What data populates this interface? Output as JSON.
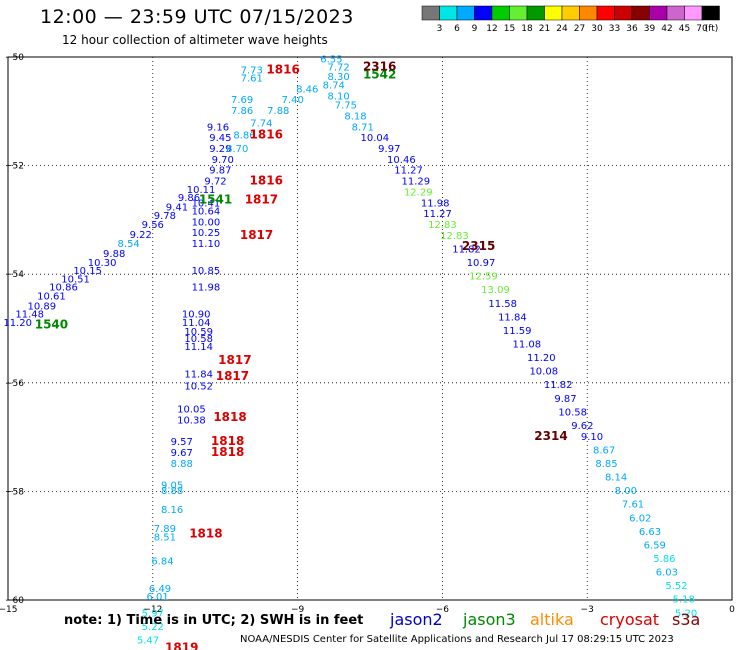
{
  "header": {
    "title": "12:00 — 23:59 UTC 07/15/2023",
    "subtitle": "12 hour collection of altimeter wave heights"
  },
  "footer": {
    "note": "note:  1) Time is in UTC;  2) SWH is in feet",
    "satellites": [
      "jason2",
      "jason3",
      "altika",
      "cryosat",
      "s3a"
    ],
    "credit": "NOAA/NESDIS Center for Satellite Applications and Research     Jul 17 08:29:15 UTC 2023"
  },
  "colorbar": {
    "labels": [
      "3",
      "6",
      "9",
      "12",
      "15",
      "18",
      "21",
      "24",
      "27",
      "30",
      "33",
      "36",
      "39",
      "42",
      "45",
      "70",
      "(ft)"
    ],
    "colors": [
      "#777777",
      "#00e5e5",
      "#00aaff",
      "#0000ff",
      "#00cc00",
      "#66ee33",
      "#009900",
      "#ffff00",
      "#ffcc00",
      "#ff8800",
      "#ff0000",
      "#cc0000",
      "#880000",
      "#aa00aa",
      "#cc66cc",
      "#ff99ff",
      "#000000"
    ]
  },
  "chart_data": {
    "type": "scatter",
    "xlim": [
      -15,
      0
    ],
    "ylim": [
      -60,
      -50
    ],
    "xticks": [
      -15,
      -12,
      -9,
      -6,
      -3,
      0
    ],
    "yticks": [
      -50,
      -52,
      -54,
      -56,
      -58,
      -60
    ],
    "xtick_labels": [
      "−15",
      "−12",
      "−9",
      "−6",
      "−3",
      "0"
    ],
    "ytick_labels": [
      "−50",
      "−52",
      "−54",
      "−56",
      "−58",
      "−60"
    ],
    "grid": true,
    "points": [
      {
        "x": -14.8,
        "y": -54.95,
        "v": "11.20",
        "c": "#0000ff"
      },
      {
        "x": -14.55,
        "y": -54.8,
        "v": "11.48",
        "c": "#0000ff"
      },
      {
        "x": -14.3,
        "y": -54.65,
        "v": "10.89",
        "c": "#0000ff"
      },
      {
        "x": -14.1,
        "y": -54.47,
        "v": "10.61",
        "c": "#0000ff"
      },
      {
        "x": -13.85,
        "y": -54.3,
        "v": "10.86",
        "c": "#0000ff"
      },
      {
        "x": -13.6,
        "y": -54.15,
        "v": "10.51",
        "c": "#0000ff"
      },
      {
        "x": -13.35,
        "y": -54.0,
        "v": "10.15",
        "c": "#0000ff"
      },
      {
        "x": -13.05,
        "y": -53.85,
        "v": "10.30",
        "c": "#0000ff"
      },
      {
        "x": -12.8,
        "y": -53.68,
        "v": "9.88",
        "c": "#0000ff"
      },
      {
        "x": -12.5,
        "y": -53.5,
        "v": "8.54",
        "c": "#00aaff"
      },
      {
        "x": -12.25,
        "y": -53.33,
        "v": "9.22",
        "c": "#0000ff"
      },
      {
        "x": -12.0,
        "y": -53.15,
        "v": "9.56",
        "c": "#0000ff"
      },
      {
        "x": -11.75,
        "y": -52.98,
        "v": "9.78",
        "c": "#0000ff"
      },
      {
        "x": -11.5,
        "y": -52.83,
        "v": "9.41",
        "c": "#0000ff"
      },
      {
        "x": -11.25,
        "y": -52.65,
        "v": "9.86",
        "c": "#0000ff"
      },
      {
        "x": -11.0,
        "y": -52.5,
        "v": "10.11",
        "c": "#0000ff"
      },
      {
        "x": -10.7,
        "y": -52.35,
        "v": "9.72",
        "c": "#0000ff"
      },
      {
        "x": -10.6,
        "y": -52.15,
        "v": "9.87",
        "c": "#0000ff"
      },
      {
        "x": -10.55,
        "y": -51.95,
        "v": "9.70",
        "c": "#0000ff"
      },
      {
        "x": -10.6,
        "y": -51.75,
        "v": "9.29",
        "c": "#0000ff"
      },
      {
        "x": -10.6,
        "y": -51.55,
        "v": "9.45",
        "c": "#0000ff"
      },
      {
        "x": -10.65,
        "y": -51.35,
        "v": "9.16",
        "c": "#0000ff"
      },
      {
        "x": -10.25,
        "y": -51.75,
        "v": "8.70",
        "c": "#00aaff"
      },
      {
        "x": -10.1,
        "y": -51.5,
        "v": "8.86",
        "c": "#00aaff"
      },
      {
        "x": -9.75,
        "y": -51.28,
        "v": "7.74",
        "c": "#00aaff"
      },
      {
        "x": -9.4,
        "y": -51.05,
        "v": "7.88",
        "c": "#00aaff"
      },
      {
        "x": -9.1,
        "y": -50.85,
        "v": "7.40",
        "c": "#00aaff"
      },
      {
        "x": -8.8,
        "y": -50.65,
        "v": "8.46",
        "c": "#00aaff"
      },
      {
        "x": -10.15,
        "y": -51.05,
        "v": "7.86",
        "c": "#00aaff"
      },
      {
        "x": -10.15,
        "y": -50.85,
        "v": "7.69",
        "c": "#00aaff"
      },
      {
        "x": -9.95,
        "y": -50.3,
        "v": "7.73",
        "c": "#00aaff"
      },
      {
        "x": -9.95,
        "y": -50.45,
        "v": "7.61",
        "c": "#00aaff"
      },
      {
        "x": -8.3,
        "y": -50.1,
        "v": "6.55",
        "c": "#00aaff"
      },
      {
        "x": -8.15,
        "y": -50.25,
        "v": "7.72",
        "c": "#00aaff"
      },
      {
        "x": -8.15,
        "y": -50.42,
        "v": "8.30",
        "c": "#00aaff"
      },
      {
        "x": -8.25,
        "y": -50.58,
        "v": "8.74",
        "c": "#00aaff"
      },
      {
        "x": -8.15,
        "y": -50.78,
        "v": "8.10",
        "c": "#00aaff"
      },
      {
        "x": -8.0,
        "y": -50.95,
        "v": "7.75",
        "c": "#00aaff"
      },
      {
        "x": -7.8,
        "y": -51.15,
        "v": "8.18",
        "c": "#00aaff"
      },
      {
        "x": -7.65,
        "y": -51.35,
        "v": "8.71",
        "c": "#00aaff"
      },
      {
        "x": -7.4,
        "y": -51.55,
        "v": "10.04",
        "c": "#0000ff"
      },
      {
        "x": -7.1,
        "y": -51.75,
        "v": "9.97",
        "c": "#0000ff"
      },
      {
        "x": -6.85,
        "y": -51.95,
        "v": "10.46",
        "c": "#0000ff"
      },
      {
        "x": -6.7,
        "y": -52.15,
        "v": "11.27",
        "c": "#0000ff"
      },
      {
        "x": -6.55,
        "y": -52.35,
        "v": "11.29",
        "c": "#0000ff"
      },
      {
        "x": -6.5,
        "y": -52.55,
        "v": "12.29",
        "c": "#66ee33"
      },
      {
        "x": -6.15,
        "y": -52.75,
        "v": "11.98",
        "c": "#0000ff"
      },
      {
        "x": -6.1,
        "y": -52.95,
        "v": "11.27",
        "c": "#0000ff"
      },
      {
        "x": -6.0,
        "y": -53.15,
        "v": "12.83",
        "c": "#66ee33"
      },
      {
        "x": -5.75,
        "y": -53.35,
        "v": "12.83",
        "c": "#66ee33"
      },
      {
        "x": -5.5,
        "y": -53.6,
        "v": "11.82",
        "c": "#0000ff"
      },
      {
        "x": -5.2,
        "y": -53.85,
        "v": "10.97",
        "c": "#0000ff"
      },
      {
        "x": -5.15,
        "y": -54.1,
        "v": "12.59",
        "c": "#66ee33"
      },
      {
        "x": -4.9,
        "y": -54.35,
        "v": "13.09",
        "c": "#66ee33"
      },
      {
        "x": -4.75,
        "y": -54.6,
        "v": "11.58",
        "c": "#0000ff"
      },
      {
        "x": -4.55,
        "y": -54.85,
        "v": "11.84",
        "c": "#0000ff"
      },
      {
        "x": -4.45,
        "y": -55.1,
        "v": "11.59",
        "c": "#0000ff"
      },
      {
        "x": -4.25,
        "y": -55.35,
        "v": "11.08",
        "c": "#0000ff"
      },
      {
        "x": -3.95,
        "y": -55.6,
        "v": "11.20",
        "c": "#0000ff"
      },
      {
        "x": -3.9,
        "y": -55.85,
        "v": "10.08",
        "c": "#0000ff"
      },
      {
        "x": -3.6,
        "y": -56.1,
        "v": "11.82",
        "c": "#0000ff"
      },
      {
        "x": -3.45,
        "y": -56.35,
        "v": "9.87",
        "c": "#0000ff"
      },
      {
        "x": -3.3,
        "y": -56.6,
        "v": "10.58",
        "c": "#0000ff"
      },
      {
        "x": -3.1,
        "y": -56.85,
        "v": "9.62",
        "c": "#0000ff"
      },
      {
        "x": -2.9,
        "y": -57.05,
        "v": "9.10",
        "c": "#0000ff"
      },
      {
        "x": -2.65,
        "y": -57.3,
        "v": "8.67",
        "c": "#00aaff"
      },
      {
        "x": -2.6,
        "y": -57.55,
        "v": "8.85",
        "c": "#00aaff"
      },
      {
        "x": -2.4,
        "y": -57.8,
        "v": "8.14",
        "c": "#00aaff"
      },
      {
        "x": -2.2,
        "y": -58.05,
        "v": "8.00",
        "c": "#00aaff"
      },
      {
        "x": -2.05,
        "y": -58.3,
        "v": "7.61",
        "c": "#00aaff"
      },
      {
        "x": -1.9,
        "y": -58.55,
        "v": "6.02",
        "c": "#00aaff"
      },
      {
        "x": -1.7,
        "y": -58.8,
        "v": "6.63",
        "c": "#00aaff"
      },
      {
        "x": -1.6,
        "y": -59.05,
        "v": "6.59",
        "c": "#00aaff"
      },
      {
        "x": -1.4,
        "y": -59.3,
        "v": "5.86",
        "c": "#00e5e5"
      },
      {
        "x": -1.35,
        "y": -59.55,
        "v": "6.03",
        "c": "#00aaff"
      },
      {
        "x": -1.15,
        "y": -59.8,
        "v": "5.52",
        "c": "#00e5e5"
      },
      {
        "x": -1.0,
        "y": -60.05,
        "v": "5.18",
        "c": "#00e5e5"
      },
      {
        "x": -0.95,
        "y": -60.3,
        "v": "5.20",
        "c": "#00e5e5"
      },
      {
        "x": -10.9,
        "y": -52.75,
        "v": "10.41",
        "c": "#0000ff"
      },
      {
        "x": -10.9,
        "y": -52.9,
        "v": "10.64",
        "c": "#0000ff"
      },
      {
        "x": -10.9,
        "y": -53.1,
        "v": "10.00",
        "c": "#0000ff"
      },
      {
        "x": -10.9,
        "y": -53.3,
        "v": "10.25",
        "c": "#0000ff"
      },
      {
        "x": -10.9,
        "y": -53.5,
        "v": "11.10",
        "c": "#0000ff"
      },
      {
        "x": -10.9,
        "y": -54.0,
        "v": "10.85",
        "c": "#0000ff"
      },
      {
        "x": -10.9,
        "y": -54.3,
        "v": "11.98",
        "c": "#0000ff"
      },
      {
        "x": -11.1,
        "y": -54.8,
        "v": "10.90",
        "c": "#0000ff"
      },
      {
        "x": -11.1,
        "y": -54.95,
        "v": "11.04",
        "c": "#0000ff"
      },
      {
        "x": -11.05,
        "y": -55.12,
        "v": "10.59",
        "c": "#0000ff"
      },
      {
        "x": -11.05,
        "y": -55.25,
        "v": "10.58",
        "c": "#0000ff"
      },
      {
        "x": -11.05,
        "y": -55.4,
        "v": "11.14",
        "c": "#0000ff"
      },
      {
        "x": -11.05,
        "y": -55.9,
        "v": "11.84",
        "c": "#0000ff"
      },
      {
        "x": -11.05,
        "y": -56.12,
        "v": "10.52",
        "c": "#0000ff"
      },
      {
        "x": -11.2,
        "y": -56.55,
        "v": "10.05",
        "c": "#0000ff"
      },
      {
        "x": -11.2,
        "y": -56.75,
        "v": "10.38",
        "c": "#0000ff"
      },
      {
        "x": -11.4,
        "y": -57.15,
        "v": "9.57",
        "c": "#0000ff"
      },
      {
        "x": -11.4,
        "y": -57.35,
        "v": "9.67",
        "c": "#0000ff"
      },
      {
        "x": -11.4,
        "y": -57.55,
        "v": "8.88",
        "c": "#00aaff"
      },
      {
        "x": -11.6,
        "y": -57.95,
        "v": "9.05",
        "c": "#00aaff"
      },
      {
        "x": -11.6,
        "y": -58.05,
        "v": "8.88",
        "c": "#00aaff"
      },
      {
        "x": -11.6,
        "y": -58.4,
        "v": "8.16",
        "c": "#00aaff"
      },
      {
        "x": -11.75,
        "y": -58.75,
        "v": "7.89",
        "c": "#00aaff"
      },
      {
        "x": -11.75,
        "y": -58.9,
        "v": "8.51",
        "c": "#00aaff"
      },
      {
        "x": -11.8,
        "y": -59.35,
        "v": "6.84",
        "c": "#00aaff"
      },
      {
        "x": -11.85,
        "y": -59.85,
        "v": "6.49",
        "c": "#00aaff"
      },
      {
        "x": -11.9,
        "y": -60.0,
        "v": "6.01",
        "c": "#00aaff"
      },
      {
        "x": -12.0,
        "y": -60.3,
        "v": "5.97",
        "c": "#00e5e5"
      },
      {
        "x": -12.0,
        "y": -60.55,
        "v": "5.22",
        "c": "#00e5e5"
      },
      {
        "x": -12.1,
        "y": -60.8,
        "v": "5.47",
        "c": "#00e5e5"
      }
    ],
    "time_labels": [
      {
        "x": -14.1,
        "y": -55.0,
        "v": "1540",
        "c": "#008800"
      },
      {
        "x": -10.7,
        "y": -52.7,
        "v": "1541",
        "c": "#008800"
      },
      {
        "x": -7.3,
        "y": -50.4,
        "v": "1542",
        "c": "#008800"
      },
      {
        "x": -9.3,
        "y": -50.3,
        "v": "1816",
        "c": "#dd0000"
      },
      {
        "x": -9.65,
        "y": -51.5,
        "v": "1816",
        "c": "#dd0000"
      },
      {
        "x": -9.65,
        "y": -52.35,
        "v": "1816",
        "c": "#dd0000"
      },
      {
        "x": -9.75,
        "y": -52.7,
        "v": "1817",
        "c": "#dd0000"
      },
      {
        "x": -9.85,
        "y": -53.35,
        "v": "1817",
        "c": "#dd0000"
      },
      {
        "x": -10.3,
        "y": -55.65,
        "v": "1817",
        "c": "#dd0000"
      },
      {
        "x": -10.35,
        "y": -55.95,
        "v": "1817",
        "c": "#dd0000"
      },
      {
        "x": -10.4,
        "y": -56.7,
        "v": "1818",
        "c": "#dd0000"
      },
      {
        "x": -10.45,
        "y": -57.15,
        "v": "1818",
        "c": "#dd0000"
      },
      {
        "x": -10.45,
        "y": -57.35,
        "v": "1818",
        "c": "#dd0000"
      },
      {
        "x": -10.9,
        "y": -58.85,
        "v": "1818",
        "c": "#dd0000"
      },
      {
        "x": -11.4,
        "y": -60.95,
        "v": "1819",
        "c": "#dd0000"
      },
      {
        "x": -7.3,
        "y": -50.25,
        "v": "2316",
        "c": "#660000"
      },
      {
        "x": -5.25,
        "y": -53.55,
        "v": "2315",
        "c": "#660000"
      },
      {
        "x": -3.75,
        "y": -57.05,
        "v": "2314",
        "c": "#660000"
      }
    ]
  }
}
